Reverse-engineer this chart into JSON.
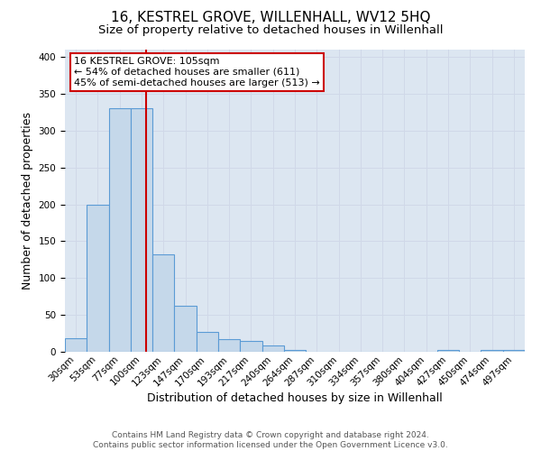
{
  "title": "16, KESTREL GROVE, WILLENHALL, WV12 5HQ",
  "subtitle": "Size of property relative to detached houses in Willenhall",
  "xlabel": "Distribution of detached houses by size in Willenhall",
  "ylabel": "Number of detached properties",
  "bin_labels": [
    "30sqm",
    "53sqm",
    "77sqm",
    "100sqm",
    "123sqm",
    "147sqm",
    "170sqm",
    "193sqm",
    "217sqm",
    "240sqm",
    "264sqm",
    "287sqm",
    "310sqm",
    "334sqm",
    "357sqm",
    "380sqm",
    "404sqm",
    "427sqm",
    "450sqm",
    "474sqm",
    "497sqm"
  ],
  "bar_heights": [
    18,
    200,
    330,
    330,
    132,
    62,
    27,
    17,
    15,
    8,
    2,
    0,
    0,
    0,
    0,
    0,
    0,
    2,
    0,
    2,
    2
  ],
  "bar_color": "#c5d8ea",
  "bar_edge_color": "#5b9bd5",
  "property_line_color": "#cc0000",
  "annotation_line1": "16 KESTREL GROVE: 105sqm",
  "annotation_line2": "← 54% of detached houses are smaller (611)",
  "annotation_line3": "45% of semi-detached houses are larger (513) →",
  "annotation_box_color": "#ffffff",
  "annotation_box_edge": "#cc0000",
  "ylim": [
    0,
    410
  ],
  "yticks": [
    0,
    50,
    100,
    150,
    200,
    250,
    300,
    350,
    400
  ],
  "grid_color": "#d0d8e8",
  "background_color": "#dce6f1",
  "footer_line1": "Contains HM Land Registry data © Crown copyright and database right 2024.",
  "footer_line2": "Contains public sector information licensed under the Open Government Licence v3.0.",
  "title_fontsize": 11,
  "subtitle_fontsize": 9.5,
  "xlabel_fontsize": 9,
  "ylabel_fontsize": 9,
  "tick_fontsize": 7.5,
  "footer_fontsize": 6.5,
  "annotation_fontsize": 8
}
